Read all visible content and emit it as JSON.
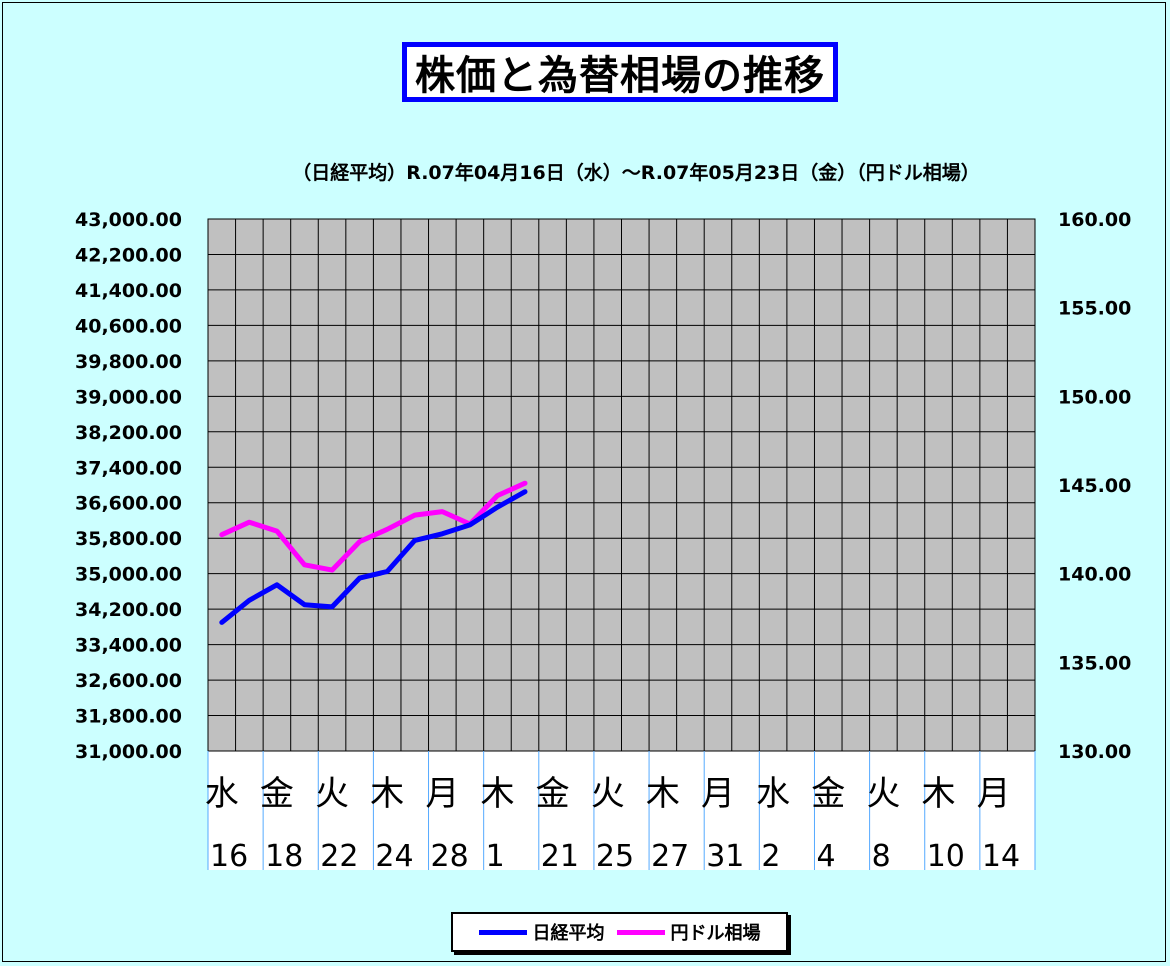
{
  "chart_data": {
    "type": "line",
    "title": "株価と為替相場の推移",
    "subtitle": "（日経平均）R.07年04月16日（水）～R.07年05月23日（金）（円ドル相場）",
    "colors": {
      "background": "#ccffff",
      "plot_area": "#c0c0c0",
      "title_border": "#0000ff"
    },
    "y_left": {
      "min": 31000,
      "max": 43000,
      "ticks": [
        "31,000.00",
        "31,800.00",
        "32,600.00",
        "33,400.00",
        "34,200.00",
        "35,000.00",
        "35,800.00",
        "36,600.00",
        "37,400.00",
        "38,200.00",
        "39,000.00",
        "39,800.00",
        "40,600.00",
        "41,400.00",
        "42,200.00",
        "43,000.00"
      ]
    },
    "y_right": {
      "min": 130,
      "max": 160,
      "ticks": [
        "130.00",
        "135.00",
        "140.00",
        "145.00",
        "150.00",
        "155.00",
        "160.00"
      ]
    },
    "x_slots": 30,
    "x_weekday_labels": [
      "水",
      "金",
      "火",
      "木",
      "月",
      "木",
      "金",
      "火",
      "木",
      "月",
      "水",
      "金",
      "火",
      "木",
      "月"
    ],
    "x_date_labels": [
      "16",
      "18",
      "22",
      "24",
      "28",
      "1",
      "21",
      "25",
      "27",
      "31",
      "2",
      "4",
      "8",
      "10",
      "14"
    ],
    "series": [
      {
        "name": "日経平均",
        "color": "#0000ff",
        "values": [
          33900,
          34400,
          34750,
          34300,
          34250,
          34900,
          35050,
          35750,
          35900,
          36100,
          36500,
          36850
        ]
      },
      {
        "name": "円ドル相場",
        "color": "#ff00ff",
        "values": [
          142.2,
          142.9,
          142.4,
          140.5,
          140.2,
          141.8,
          142.5,
          143.3,
          143.5,
          142.8,
          144.4,
          145.1
        ]
      }
    ]
  }
}
